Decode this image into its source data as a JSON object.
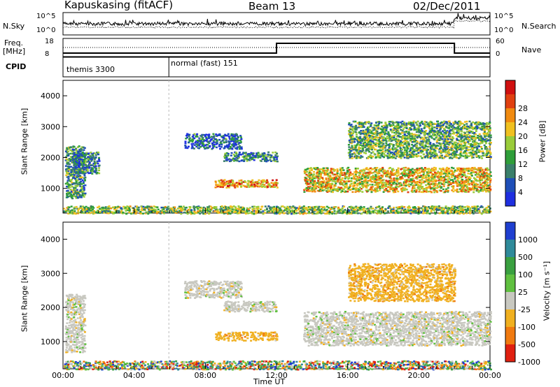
{
  "header": {
    "station": "Kapuskasing (fitACF)",
    "beam": "Beam 13",
    "date": "02/Dec/2011"
  },
  "aux_panels": {
    "nsky_label": "N.Sky",
    "nsearch_label": "N.Search",
    "freq_label_line1": "Freq.",
    "freq_label_line2": "[MHz]",
    "nave_label": "Nave",
    "cpid_label": "CPID",
    "noise_ticks": [
      "10^5",
      "10^0"
    ],
    "freq_ticks": [
      "18",
      "8"
    ],
    "nave_ticks": [
      "60",
      "0"
    ],
    "cpid_segments": [
      {
        "label": "themis 3300",
        "start_hour": 0.0,
        "end_hour": 5.95
      },
      {
        "label": "normal (fast) 151",
        "start_hour": 5.95,
        "end_hour": 24.0
      }
    ],
    "frequency_steps": [
      {
        "start_hour": 0.0,
        "end_hour": 12.0,
        "level": "low"
      },
      {
        "start_hour": 12.0,
        "end_hour": 22.0,
        "level": "high"
      },
      {
        "start_hour": 22.0,
        "end_hour": 24.0,
        "level": "low"
      }
    ]
  },
  "chart_data": [
    {
      "type": "heatmap",
      "name": "power",
      "xlabel": "",
      "ylabel": "Slant Range [km]",
      "xlim": [
        0,
        24
      ],
      "ylim": [
        200,
        4500
      ],
      "yticks": [
        "1000",
        "2000",
        "3000",
        "4000"
      ],
      "colorbar": {
        "label": "Power [dB]",
        "ticks": [
          "4",
          "8",
          "12",
          "16",
          "20",
          "24",
          "28"
        ],
        "colors": [
          "#1f2fe0",
          "#1f4fb8",
          "#3a7f6a",
          "#2f9e3a",
          "#9acc3a",
          "#f0c020",
          "#f08a10",
          "#e04010",
          "#d01010"
        ]
      },
      "regions": [
        {
          "t0": 0.1,
          "t1": 1.2,
          "r0": 700,
          "r1": 2400,
          "level": 0.35
        },
        {
          "t0": 0.5,
          "t1": 2.0,
          "r0": 1500,
          "r1": 2200,
          "level": 0.25
        },
        {
          "t0": 6.8,
          "t1": 10.0,
          "r0": 2300,
          "r1": 2800,
          "level": 0.2
        },
        {
          "t0": 9.0,
          "t1": 12.0,
          "r0": 1900,
          "r1": 2200,
          "level": 0.3
        },
        {
          "t0": 8.5,
          "t1": 12.0,
          "r0": 1050,
          "r1": 1300,
          "level": 0.7
        },
        {
          "t0": 13.5,
          "t1": 24.0,
          "r0": 900,
          "r1": 1700,
          "level": 0.6
        },
        {
          "t0": 16.0,
          "t1": 24.0,
          "r0": 2000,
          "r1": 3200,
          "level": 0.4
        },
        {
          "t0": 0.0,
          "t1": 24.0,
          "r0": 200,
          "r1": 450,
          "level": 0.45
        }
      ]
    },
    {
      "type": "heatmap",
      "name": "velocity",
      "xlabel": "Time UT",
      "ylabel": "Slant Range [km]",
      "xlim": [
        0,
        24
      ],
      "ylim": [
        200,
        4500
      ],
      "yticks": [
        "1000",
        "2000",
        "3000",
        "4000"
      ],
      "xticks": [
        "00:00",
        "04:00",
        "08:00",
        "12:00",
        "16:00",
        "20:00",
        "00:00"
      ],
      "colorbar": {
        "label": "Velocity [m s⁻¹]",
        "ticks": [
          "1000",
          "500",
          "100",
          "25",
          "-25",
          "-100",
          "-500",
          "-1000"
        ],
        "colors": [
          "#1f3fd0",
          "#2f8a9a",
          "#3aa040",
          "#60c040",
          "#c8c8c0",
          "#f0b020",
          "#f07a10",
          "#e02010"
        ]
      },
      "regions": [
        {
          "t0": 0.1,
          "t1": 1.2,
          "r0": 700,
          "r1": 2400,
          "level": "grey"
        },
        {
          "t0": 6.8,
          "t1": 10.0,
          "r0": 2300,
          "r1": 2800,
          "level": "grey"
        },
        {
          "t0": 9.0,
          "t1": 12.0,
          "r0": 1900,
          "r1": 2200,
          "level": "grey"
        },
        {
          "t0": 8.5,
          "t1": 12.0,
          "r0": 1050,
          "r1": 1300,
          "level": "orange"
        },
        {
          "t0": 13.5,
          "t1": 24.0,
          "r0": 900,
          "r1": 1900,
          "level": "grey"
        },
        {
          "t0": 16.0,
          "t1": 22.0,
          "r0": 2200,
          "r1": 3300,
          "level": "orange"
        },
        {
          "t0": 0.0,
          "t1": 24.0,
          "r0": 200,
          "r1": 450,
          "level": "mixed"
        }
      ]
    }
  ]
}
